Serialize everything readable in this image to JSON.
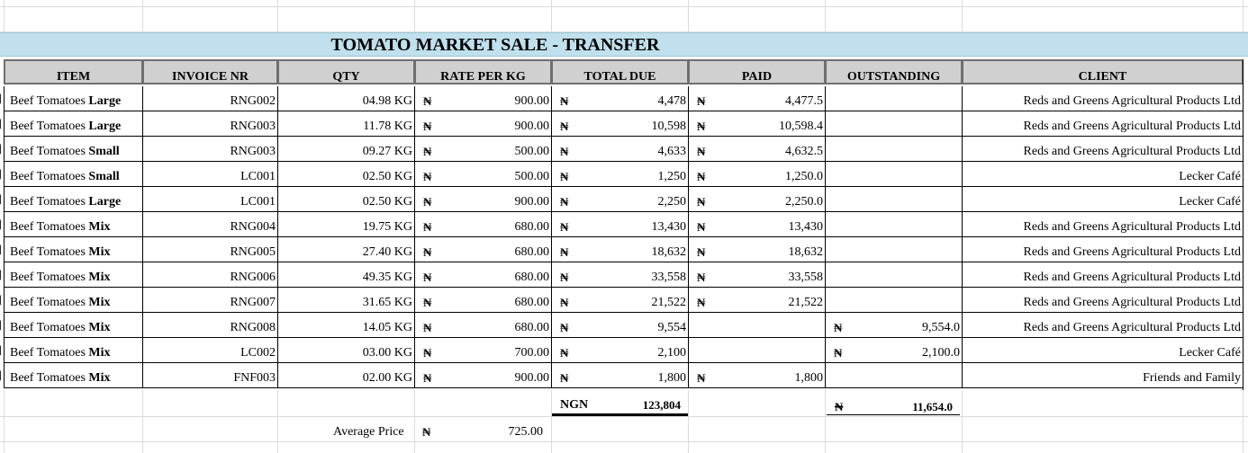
{
  "sheet": {
    "title": "TOMATO MARKET SALE - TRANSFER",
    "currency_symbol": "₦",
    "columns": [
      "ITEM",
      "INVOICE NR",
      "QTY",
      "RATE PER KG",
      "TOTAL DUE",
      "PAID",
      "OUTSTANDING",
      "CLIENT"
    ],
    "rows": [
      {
        "item_base": "Beef Tomatoes ",
        "item_variant": "Large",
        "invoice": "RNG002",
        "qty": "04.98 KG",
        "rate": "900.00",
        "total_due": "4,478",
        "paid": "4,477.5",
        "outstanding": "",
        "client": "Reds and Greens Agricultural Products Ltd"
      },
      {
        "item_base": "Beef Tomatoes ",
        "item_variant": "Large",
        "invoice": "RNG003",
        "qty": "11.78 KG",
        "rate": "900.00",
        "total_due": "10,598",
        "paid": "10,598.4",
        "outstanding": "",
        "client": "Reds and Greens Agricultural Products Ltd"
      },
      {
        "item_base": "Beef Tomatoes ",
        "item_variant": "Small",
        "invoice": "RNG003",
        "qty": "09.27 KG",
        "rate": "500.00",
        "total_due": "4,633",
        "paid": "4,632.5",
        "outstanding": "",
        "client": "Reds and Greens Agricultural Products Ltd"
      },
      {
        "item_base": "Beef Tomatoes ",
        "item_variant": "Small",
        "invoice": "LC001",
        "qty": "02.50 KG",
        "rate": "500.00",
        "total_due": "1,250",
        "paid": "1,250.0",
        "outstanding": "",
        "client": "Lecker Café"
      },
      {
        "item_base": "Beef Tomatoes ",
        "item_variant": "Large",
        "invoice": "LC001",
        "qty": "02.50 KG",
        "rate": "900.00",
        "total_due": "2,250",
        "paid": "2,250.0",
        "outstanding": "",
        "client": "Lecker Café"
      },
      {
        "item_base": "Beef Tomatoes ",
        "item_variant": "Mix",
        "invoice": "RNG004",
        "qty": "19.75 KG",
        "rate": "680.00",
        "total_due": "13,430",
        "paid": "13,430",
        "outstanding": "",
        "client": "Reds and Greens Agricultural Products Ltd"
      },
      {
        "item_base": "Beef Tomatoes ",
        "item_variant": "Mix",
        "invoice": "RNG005",
        "qty": "27.40 KG",
        "rate": "680.00",
        "total_due": "18,632",
        "paid": "18,632",
        "outstanding": "",
        "client": "Reds and Greens Agricultural Products Ltd"
      },
      {
        "item_base": "Beef Tomatoes ",
        "item_variant": "Mix",
        "invoice": "RNG006",
        "qty": "49.35 KG",
        "rate": "680.00",
        "total_due": "33,558",
        "paid": "33,558",
        "outstanding": "",
        "client": "Reds and Greens Agricultural Products Ltd"
      },
      {
        "item_base": "Beef Tomatoes ",
        "item_variant": "Mix",
        "invoice": "RNG007",
        "qty": "31.65 KG",
        "rate": "680.00",
        "total_due": "21,522",
        "paid": "21,522",
        "outstanding": "",
        "client": "Reds and Greens Agricultural Products Ltd"
      },
      {
        "item_base": "Beef Tomatoes ",
        "item_variant": "Mix",
        "invoice": "RNG008",
        "qty": "14.05 KG",
        "rate": "680.00",
        "total_due": "9,554",
        "paid": "",
        "outstanding": "9,554.0",
        "client": "Reds and Greens Agricultural Products Ltd"
      },
      {
        "item_base": "Beef Tomatoes ",
        "item_variant": "Mix",
        "invoice": "LC002",
        "qty": "03.00 KG",
        "rate": "700.00",
        "total_due": "2,100",
        "paid": "",
        "outstanding": "2,100.0",
        "client": "Lecker Café"
      },
      {
        "item_base": "Beef Tomatoes ",
        "item_variant": "Mix",
        "invoice": "FNF003",
        "qty": "02.00 KG",
        "rate": "900.00",
        "total_due": "1,800",
        "paid": "1,800",
        "outstanding": "",
        "client": "Friends and Family"
      }
    ],
    "totals": {
      "label": "NGN",
      "total_due": "123,804",
      "outstanding": "11,654.0"
    },
    "average": {
      "label": "Average Price",
      "value": "725.00"
    }
  }
}
